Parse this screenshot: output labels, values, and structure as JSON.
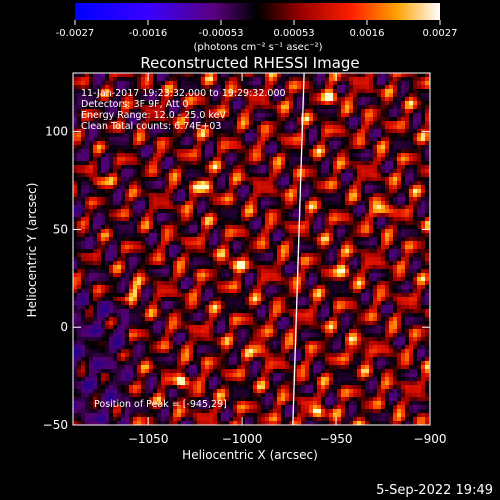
{
  "colorbar": {
    "tick_labels": [
      "-0.0027",
      "-0.0016",
      "-0.00053",
      "0.00053",
      "0.0016",
      "0.0027"
    ],
    "range": [
      -0.0027,
      0.0027
    ],
    "units": "(photons cm⁻² s⁻¹ asec⁻²)"
  },
  "chart_data": {
    "type": "heatmap",
    "title": "Reconstructed RHESSI Image",
    "xlabel": "Heliocentric X (arcsec)",
    "ylabel": "Heliocentric Y (arcsec)",
    "xlim": [
      -1090,
      -900
    ],
    "ylim": [
      -50,
      130
    ],
    "x_ticks": [
      -1050,
      -1000,
      -950,
      -900
    ],
    "y_ticks": [
      100,
      50,
      0,
      -50
    ],
    "x_tick_labels": [
      "−1050",
      "−1000",
      "−950",
      "−900"
    ],
    "y_tick_labels": [
      "100",
      "50",
      "0",
      "−50"
    ],
    "limb_line": [
      [
        -973,
        -50
      ],
      [
        -967,
        130
      ]
    ],
    "peak": {
      "x": -945,
      "y": 29
    },
    "hotspots": [
      {
        "x": -945,
        "y": 29
      },
      {
        "x": -1020,
        "y": 72
      },
      {
        "x": -952,
        "y": 118
      },
      {
        "x": -1005,
        "y": 32
      },
      {
        "x": -1057,
        "y": 18
      },
      {
        "x": -1032,
        "y": -28
      },
      {
        "x": -960,
        "y": -44
      },
      {
        "x": -925,
        "y": 60
      },
      {
        "x": -1076,
        "y": 74
      },
      {
        "x": -990,
        "y": -10
      },
      {
        "x": -938,
        "y": -12
      }
    ],
    "annotations": [
      "11-Jan-2017 19:23:32.000 to 19:29:32.000",
      "Detectors: 3F 9F, Att 0",
      "Energy Range: 12.0 - 25.0 keV",
      "Clean     Total counts: 6.74E+03",
      "Position of Peak = [-945,29]"
    ]
  },
  "footer_date": "5-Sep-2022 19:49"
}
